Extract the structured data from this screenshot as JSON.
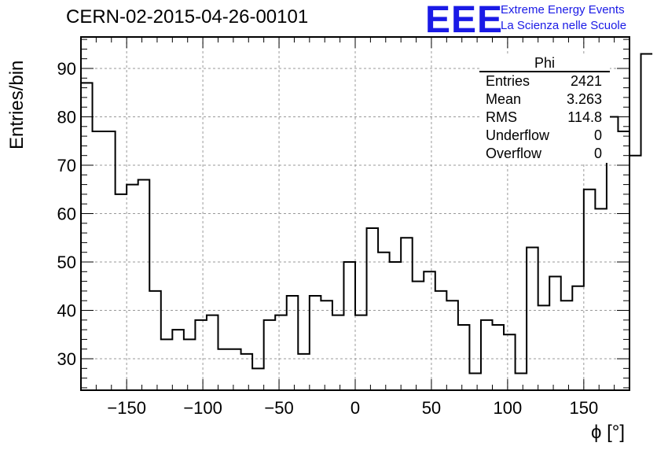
{
  "header": {
    "title": "CERN-02-2015-04-26-00101",
    "logo": "EEE",
    "logo_line1": "Extreme Energy Events",
    "logo_line2": "La Scienza nelle Scuole"
  },
  "stats": {
    "name": "Phi",
    "rows": [
      {
        "label": "Entries",
        "value": "2421"
      },
      {
        "label": "Mean",
        "value": "3.263"
      },
      {
        "label": "RMS",
        "value": "114.8"
      },
      {
        "label": "Underflow",
        "value": "0"
      },
      {
        "label": "Overflow",
        "value": "0"
      }
    ]
  },
  "chart_data": {
    "type": "bar",
    "style": "step-histogram",
    "xlabel": "ϕ [°]",
    "ylabel": "Entries/bin",
    "xlim": [
      -180,
      180
    ],
    "ylim": [
      23.5,
      96.5
    ],
    "xticks": [
      -150,
      -100,
      -50,
      0,
      50,
      100,
      150
    ],
    "xtick_labels": [
      "−150",
      "−100",
      "−50",
      "0",
      "50",
      "100",
      "150"
    ],
    "yticks": [
      30,
      40,
      50,
      60,
      70,
      80,
      90
    ],
    "grid": true,
    "line_color": "#000000",
    "bin_edges_start": -180,
    "bin_width": 7.5,
    "values": [
      87,
      77,
      77,
      64,
      66,
      67,
      44,
      34,
      36,
      34,
      38,
      39,
      32,
      32,
      31,
      28,
      38,
      39,
      43,
      31,
      43,
      42,
      39,
      50,
      39,
      57,
      52,
      50,
      55,
      46,
      48,
      44,
      42,
      37,
      27,
      38,
      37,
      35,
      27,
      53,
      41,
      47,
      42,
      45,
      65,
      61,
      80,
      77,
      72,
      93
    ]
  }
}
